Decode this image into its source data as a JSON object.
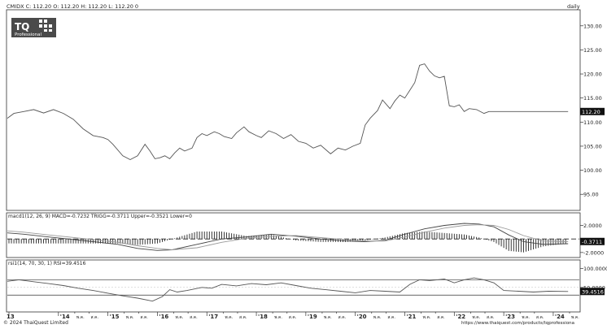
{
  "header": {
    "symbol_line": "CMIDX C: 112.20 O: 112.20 H: 112.20 L: 112.20 0",
    "period": "daily"
  },
  "logo": {
    "text": "TQ",
    "sub": "Professional"
  },
  "macd_label": "macd1(12, 26, 9) MACD=-0.7232 TRIGG=-0.3711 Upper=-0.3521 Lower=0",
  "rsi_label": "rsi1(14, 70, 30, 1) RSI=39.4516",
  "footer": {
    "copyright": "© 2024 ThaiQuest Limited",
    "url": "https://www.thaiquest.com/products/tqprofessiona"
  },
  "x_axis": {
    "ticks": [
      {
        "label": "13",
        "x": 0.0
      },
      {
        "label": "'14",
        "x": 1.0
      },
      {
        "label": "พ.ค.",
        "x": 1.33
      },
      {
        "label": "ส.ค.",
        "x": 1.62
      },
      {
        "label": "'15",
        "x": 2.0
      },
      {
        "label": "พ.ค.",
        "x": 2.33
      },
      {
        "label": "ส.ค.",
        "x": 2.62
      },
      {
        "label": "'16",
        "x": 3.0
      },
      {
        "label": "พ.ค.",
        "x": 3.33
      },
      {
        "label": "ส.ค.",
        "x": 3.62
      },
      {
        "label": "'17",
        "x": 4.0
      },
      {
        "label": "พ.ค.",
        "x": 4.33
      },
      {
        "label": "ส.ค.",
        "x": 4.62
      },
      {
        "label": "'18",
        "x": 5.0
      },
      {
        "label": "พ.ค.",
        "x": 5.33
      },
      {
        "label": "ส.ค.",
        "x": 5.62
      },
      {
        "label": "'19",
        "x": 6.0
      },
      {
        "label": "พ.ค.",
        "x": 6.33
      },
      {
        "label": "ส.ค.",
        "x": 6.62
      },
      {
        "label": "'20",
        "x": 7.0
      },
      {
        "label": "พ.ค.",
        "x": 7.33
      },
      {
        "label": "ส.ค.",
        "x": 7.62
      },
      {
        "label": "'21",
        "x": 8.0
      },
      {
        "label": "พ.ค.",
        "x": 8.33
      },
      {
        "label": "ส.ค.",
        "x": 8.62
      },
      {
        "label": "'22",
        "x": 9.0
      },
      {
        "label": "พ.ค.",
        "x": 9.33
      },
      {
        "label": "ส.ค.",
        "x": 9.62
      },
      {
        "label": "'23",
        "x": 10.0
      },
      {
        "label": "พ.ค.",
        "x": 10.33
      },
      {
        "label": "ส.ค.",
        "x": 10.62
      },
      {
        "label": "'24",
        "x": 11.0
      },
      {
        "label": "พ.ค.",
        "x": 11.33
      }
    ]
  },
  "chart_data": [
    {
      "type": "line",
      "panel": "price",
      "ylim": [
        92,
        133
      ],
      "y_ticks": [
        95,
        100,
        105,
        110,
        115,
        120,
        125,
        130
      ],
      "y_tick_labels": [
        "95.00",
        "100.00",
        "105.00",
        "110.00",
        "115.00",
        "120.00",
        "125.00",
        "130.00"
      ],
      "last_value_label": "112.20",
      "last_value": 112.2,
      "colors": {
        "line": "#555555"
      },
      "series": [
        {
          "x": [
            -0.1,
            0.1,
            0.3,
            0.5,
            0.7,
            0.9,
            1.1,
            1.3,
            1.5,
            1.7,
            1.9,
            2.0,
            2.1,
            2.3,
            2.45,
            2.6,
            2.75,
            2.85,
            2.95,
            3.05,
            3.15,
            3.25,
            3.35,
            3.45,
            3.55,
            3.7,
            3.8,
            3.9,
            4.0,
            4.15,
            4.25,
            4.35,
            4.5,
            4.6,
            4.75,
            4.85,
            5.0,
            5.1,
            5.25,
            5.4,
            5.55,
            5.7,
            5.85,
            6.0,
            6.15,
            6.3,
            6.5,
            6.65,
            6.8,
            6.95,
            7.1,
            7.2,
            7.3,
            7.45,
            7.55,
            7.7,
            7.8,
            7.9,
            8.0,
            8.1,
            8.2,
            8.3,
            8.4,
            8.5,
            8.6,
            8.7,
            8.8,
            8.9,
            9.0,
            9.1,
            9.2,
            9.3,
            9.45,
            9.6,
            9.7,
            9.8,
            10.0,
            10.1,
            10.2,
            10.35,
            10.5,
            10.65,
            10.8,
            11.0,
            11.15,
            11.3
          ],
          "y": [
            110.8,
            111.8,
            112.2,
            112.6,
            111.9,
            112.6,
            111.8,
            110.6,
            108.6,
            107.2,
            106.8,
            106.4,
            105.4,
            103.0,
            102.2,
            103.0,
            105.4,
            104.0,
            102.4,
            102.6,
            103.0,
            102.4,
            103.6,
            104.6,
            104.0,
            104.6,
            106.8,
            107.6,
            107.2,
            108.0,
            107.6,
            107.0,
            106.6,
            107.8,
            109.0,
            108.0,
            107.2,
            106.8,
            108.2,
            107.6,
            106.6,
            107.4,
            106.0,
            105.6,
            104.6,
            105.2,
            103.4,
            104.6,
            104.2,
            105.0,
            105.6,
            109.4,
            110.8,
            112.4,
            114.6,
            112.8,
            114.4,
            115.6,
            115.0,
            116.6,
            118.2,
            121.8,
            122.1,
            120.6,
            119.6,
            119.2,
            119.5,
            113.4,
            113.2,
            113.6,
            112.2,
            112.8,
            112.6,
            111.8,
            112.2,
            112.2,
            112.2,
            112.2,
            112.2,
            112.2,
            112.2,
            112.2,
            112.2,
            112.2,
            112.2,
            112.2
          ]
        }
      ]
    },
    {
      "type": "bar+line",
      "panel": "macd",
      "ylim": [
        -2.5,
        2.9
      ],
      "y_ticks": [
        2.0,
        -2.0
      ],
      "y_tick_labels": [
        "2.0000",
        "-2.0000"
      ],
      "last_value_label": "-0.3711",
      "last_value": -0.3711,
      "colors": {
        "macd": "#444444",
        "trigger": "#999999",
        "hist": "#222222"
      },
      "series": [
        {
          "name": "MACD",
          "x": [
            -0.1,
            0.3,
            0.8,
            1.2,
            1.7,
            2.2,
            2.6,
            3.0,
            3.3,
            3.8,
            4.3,
            4.8,
            5.3,
            5.8,
            6.3,
            6.8,
            7.2,
            7.6,
            8.0,
            8.4,
            8.8,
            9.2,
            9.5,
            9.8,
            10.1,
            10.4,
            10.8,
            11.3
          ],
          "values": [
            0.9,
            0.7,
            0.3,
            0.0,
            -0.4,
            -0.8,
            -1.4,
            -1.7,
            -1.6,
            -0.8,
            0.0,
            0.3,
            0.7,
            0.4,
            0.0,
            -0.3,
            -0.4,
            -0.2,
            0.7,
            1.5,
            2.0,
            2.3,
            2.2,
            1.8,
            0.6,
            -0.4,
            -0.8,
            -0.7
          ]
        },
        {
          "name": "TRIGG",
          "x": [
            -0.1,
            0.3,
            0.8,
            1.2,
            1.7,
            2.2,
            2.6,
            3.0,
            3.3,
            3.8,
            4.3,
            4.8,
            5.3,
            5.8,
            6.3,
            6.8,
            7.2,
            7.6,
            8.0,
            8.4,
            8.8,
            9.2,
            9.5,
            9.8,
            10.1,
            10.4,
            10.8,
            11.3
          ],
          "values": [
            1.2,
            1.0,
            0.6,
            0.3,
            -0.1,
            -0.5,
            -1.0,
            -1.4,
            -1.6,
            -1.3,
            -0.5,
            0.1,
            0.4,
            0.5,
            0.2,
            -0.1,
            -0.3,
            -0.3,
            0.3,
            1.0,
            1.6,
            2.0,
            2.1,
            2.0,
            1.4,
            0.5,
            -0.3,
            -0.4
          ]
        }
      ]
    },
    {
      "type": "line",
      "panel": "rsi",
      "ylim": [
        -10,
        105
      ],
      "y_ticks": [
        100,
        50
      ],
      "y_tick_labels": [
        "100.0000",
        "50.0000"
      ],
      "bands": [
        70,
        30
      ],
      "last_value_label": "39.4516",
      "last_value": 39.4516,
      "colors": {
        "line": "#555555"
      },
      "series": [
        {
          "x": [
            -0.1,
            0.2,
            0.5,
            0.8,
            1.1,
            1.4,
            1.7,
            2.0,
            2.3,
            2.6,
            2.9,
            3.1,
            3.25,
            3.4,
            3.6,
            3.9,
            4.1,
            4.3,
            4.6,
            4.9,
            5.2,
            5.5,
            5.8,
            6.1,
            6.4,
            6.7,
            7.0,
            7.3,
            7.6,
            7.9,
            8.1,
            8.3,
            8.5,
            8.8,
            9.0,
            9.2,
            9.4,
            9.6,
            9.8,
            10.0,
            10.3,
            10.6,
            10.9,
            11.3
          ],
          "y": [
            66,
            70,
            65,
            60,
            55,
            48,
            42,
            35,
            28,
            22,
            14,
            26,
            44,
            38,
            42,
            50,
            48,
            58,
            54,
            60,
            57,
            62,
            55,
            48,
            44,
            40,
            36,
            42,
            40,
            38,
            58,
            70,
            68,
            72,
            62,
            70,
            75,
            70,
            62,
            42,
            40,
            38,
            40,
            39.45
          ]
        }
      ]
    }
  ]
}
